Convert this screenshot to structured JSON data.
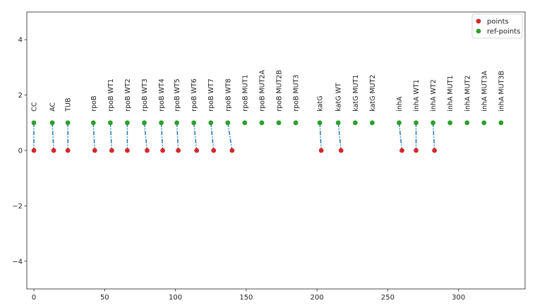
{
  "chart_data": {
    "type": "scatter",
    "xlim": [
      -5,
      347
    ],
    "ylim": [
      -5,
      5
    ],
    "xticks": [
      0,
      50,
      100,
      150,
      200,
      250,
      300
    ],
    "yticks": [
      -4,
      -2,
      0,
      2,
      4
    ],
    "grid": false,
    "legend_position": "top-right",
    "series": [
      {
        "name": "points",
        "color": "#d62728"
      },
      {
        "name": "ref-points",
        "color": "#2ca02c"
      }
    ],
    "connector_color": "#1f77b4",
    "items": [
      {
        "label": "CC",
        "point": [
          0,
          0
        ],
        "ref": [
          0,
          1
        ]
      },
      {
        "label": "AC",
        "point": [
          14,
          0
        ],
        "ref": [
          13,
          1
        ]
      },
      {
        "label": "TUB",
        "point": [
          24,
          0
        ],
        "ref": [
          24,
          1
        ]
      },
      {
        "label": "rpoB",
        "point": [
          43,
          0
        ],
        "ref": [
          42,
          1
        ]
      },
      {
        "label": "rpoB WT1",
        "point": [
          55,
          0
        ],
        "ref": [
          54,
          1
        ]
      },
      {
        "label": "rpoB WT2",
        "point": [
          66,
          0
        ],
        "ref": [
          66,
          1
        ]
      },
      {
        "label": "rpoB WT3",
        "point": [
          80,
          0
        ],
        "ref": [
          78,
          1
        ]
      },
      {
        "label": "rpoB WT4",
        "point": [
          91,
          0
        ],
        "ref": [
          90,
          1
        ]
      },
      {
        "label": "rpoB WT5",
        "point": [
          102,
          0
        ],
        "ref": [
          101,
          1
        ]
      },
      {
        "label": "rpoB WT6",
        "point": [
          115,
          0
        ],
        "ref": [
          113,
          1
        ]
      },
      {
        "label": "rpoB WT7",
        "point": [
          127,
          0
        ],
        "ref": [
          125,
          1
        ]
      },
      {
        "label": "rpoB WT8",
        "point": [
          140,
          0
        ],
        "ref": [
          137,
          1
        ]
      },
      {
        "label": "rpoB MUT1",
        "point": null,
        "ref": [
          149,
          1
        ]
      },
      {
        "label": "rpoB MUT2A",
        "point": null,
        "ref": [
          161,
          1
        ]
      },
      {
        "label": "rpoB MUT2B",
        "point": null,
        "ref": [
          173,
          1
        ]
      },
      {
        "label": "rpoB MUT3",
        "point": null,
        "ref": [
          185,
          1
        ]
      },
      {
        "label": "katG",
        "point": [
          203,
          0
        ],
        "ref": [
          202,
          1
        ]
      },
      {
        "label": "katG WT",
        "point": [
          217,
          0
        ],
        "ref": [
          215,
          1
        ]
      },
      {
        "label": "katG MUT1",
        "point": null,
        "ref": [
          227,
          1
        ]
      },
      {
        "label": "katG MUT2",
        "point": null,
        "ref": [
          239,
          1
        ]
      },
      {
        "label": "inhA",
        "point": [
          260,
          0
        ],
        "ref": [
          258,
          1
        ]
      },
      {
        "label": "inhA WT1",
        "point": [
          270,
          0
        ],
        "ref": [
          270,
          1
        ]
      },
      {
        "label": "inhA WT2",
        "point": [
          283,
          0
        ],
        "ref": [
          282,
          1
        ]
      },
      {
        "label": "inhA MUT1",
        "point": null,
        "ref": [
          294,
          1
        ]
      },
      {
        "label": "inhA MUT2",
        "point": null,
        "ref": [
          306,
          1
        ]
      },
      {
        "label": "inhA MUT3A",
        "point": null,
        "ref": [
          318,
          1
        ]
      },
      {
        "label": "inhA MUT3B",
        "point": null,
        "ref": [
          330,
          1
        ]
      }
    ]
  }
}
